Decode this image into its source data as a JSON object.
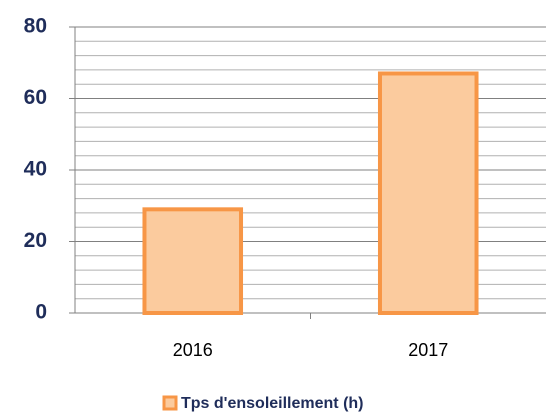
{
  "chart_data": {
    "type": "bar",
    "categories": [
      "2016",
      "2017"
    ],
    "series": [
      {
        "name": "Tps d'ensoleillement (h)",
        "color": "#f79646",
        "fill": "#fbcb9e",
        "values": [
          29,
          67
        ]
      }
    ],
    "ylim": [
      0,
      80
    ],
    "yticks": [
      0,
      20,
      40,
      60,
      80
    ],
    "grid": true,
    "minor_grid_step": 4,
    "legend": "bottom"
  }
}
